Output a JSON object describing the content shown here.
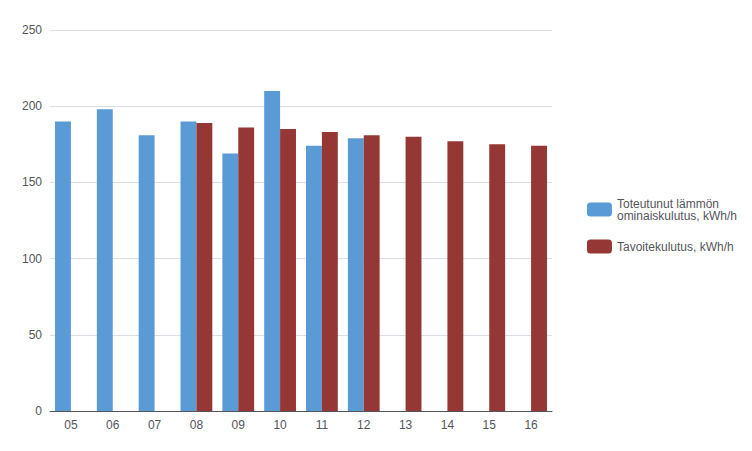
{
  "chart_data": {
    "type": "bar",
    "categories": [
      "05",
      "06",
      "07",
      "08",
      "09",
      "10",
      "11",
      "12",
      "13",
      "14",
      "15",
      "16"
    ],
    "series": [
      {
        "name": "Toteutunut lämmön\nominaiskulutus, kWh/h",
        "color": "#5B9BD5",
        "values": [
          190,
          198,
          181,
          190,
          169,
          210,
          174,
          179,
          null,
          null,
          null,
          null
        ]
      },
      {
        "name": "Tavoitekulutus, kWh/h",
        "color": "#953735",
        "values": [
          null,
          null,
          null,
          189,
          186,
          185,
          183,
          181,
          180,
          177,
          175,
          174
        ]
      }
    ],
    "ylim": [
      0,
      250
    ],
    "yticks": [
      0,
      50,
      100,
      150,
      200,
      250
    ],
    "grid": true,
    "legend": "right"
  }
}
